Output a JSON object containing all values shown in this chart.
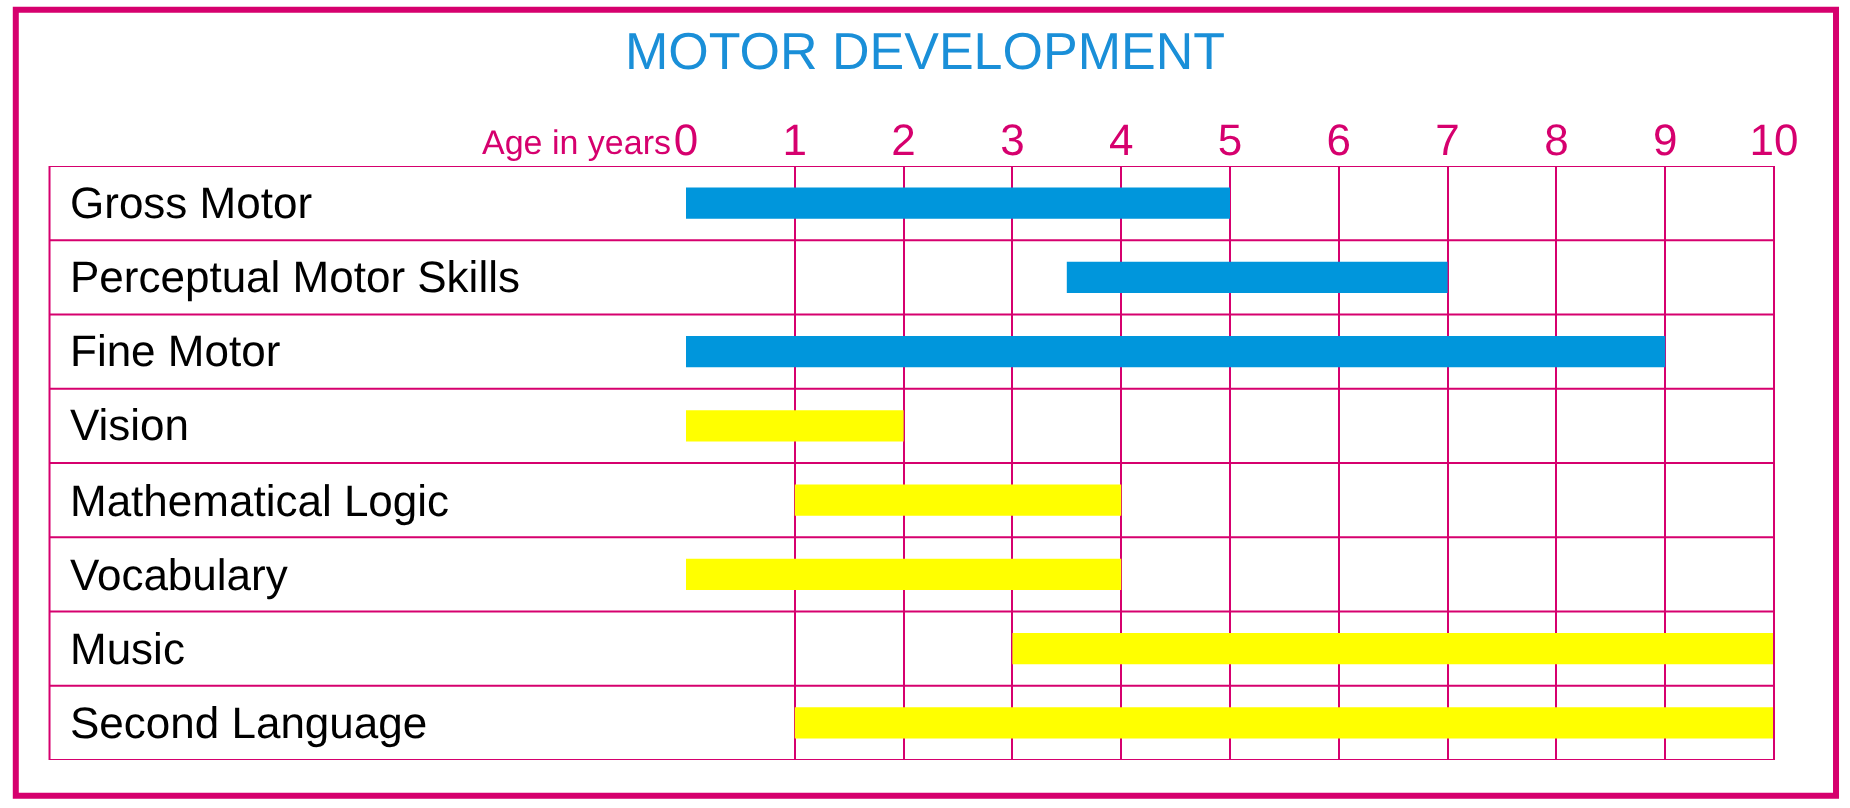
{
  "chart_data": {
    "type": "bar",
    "orientation": "horizontal",
    "title": "MOTOR DEVELOPMENT",
    "xlabel": "Age in years",
    "categories": [
      "Gross Motor",
      "Perceptual Motor Skills",
      "Fine Motor",
      "Vision",
      "Mathematical Logic",
      "Vocabulary",
      "Music",
      "Second Language"
    ],
    "base": [
      0,
      3.5,
      0,
      0,
      1,
      0,
      3,
      1
    ],
    "values": [
      5,
      3.5,
      9,
      2,
      3,
      4,
      7,
      9
    ],
    "colors": [
      "#0096dc",
      "#0096dc",
      "#0096dc",
      "#ffff00",
      "#ffff00",
      "#ffff00",
      "#ffff00",
      "#ffff00"
    ],
    "xlim": [
      0,
      10
    ],
    "xticks": [
      0,
      1,
      2,
      3,
      4,
      5,
      6,
      7,
      8,
      9,
      10
    ],
    "grid": true
  }
}
